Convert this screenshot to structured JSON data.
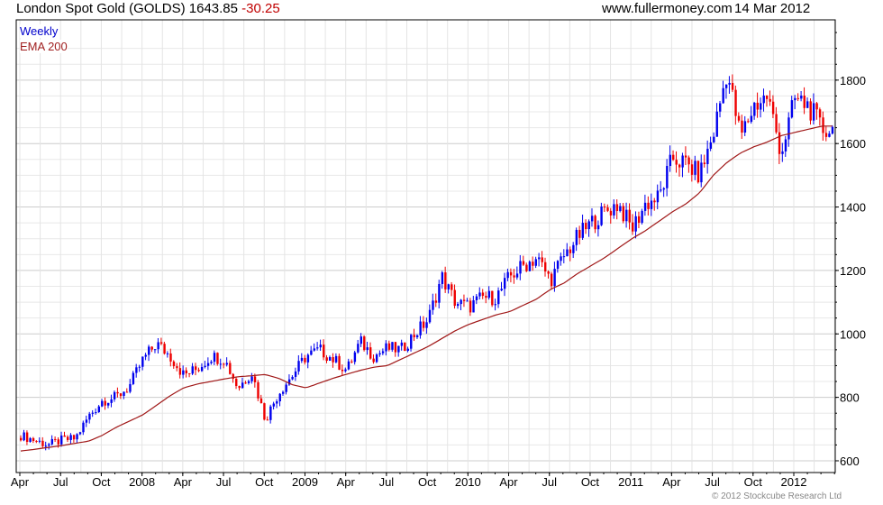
{
  "header": {
    "title": "London Spot Gold (GOLDS) 1643.85",
    "change": "-30.25",
    "site": "www.fullermoney.com",
    "date": "14 Mar 2012"
  },
  "legend": {
    "series": "Weekly",
    "ema": "EMA 200"
  },
  "footer": {
    "copyright": "© 2012 Stockcube Research Ltd"
  },
  "colors": {
    "up": "#0000ee",
    "down": "#ee0000",
    "ema": "#a01818",
    "grid": "#dddddd"
  },
  "chart_data": {
    "type": "candlestick",
    "title": "London Spot Gold (GOLDS)",
    "ylim": [
      563,
      1990
    ],
    "yticks": [
      600,
      800,
      1000,
      1200,
      1400,
      1600,
      1800
    ],
    "xticks": [
      "Apr",
      "Jul",
      "Oct",
      "2008",
      "Apr",
      "Jul",
      "Oct",
      "2009",
      "Apr",
      "Jul",
      "Oct",
      "2010",
      "Apr",
      "Jul",
      "Oct",
      "2011",
      "Apr",
      "Jul",
      "Oct",
      "2012"
    ],
    "months": [
      "Apr 2007",
      "May",
      "Jun",
      "Jul",
      "Aug",
      "Sep",
      "Oct",
      "Nov",
      "Dec",
      "Jan 2008",
      "Feb",
      "Mar",
      "Apr",
      "May",
      "Jun",
      "Jul",
      "Aug",
      "Sep",
      "Oct",
      "Nov",
      "Dec",
      "Jan 2009",
      "Feb",
      "Mar",
      "Apr",
      "May",
      "Jun",
      "Jul",
      "Aug",
      "Sep",
      "Oct",
      "Nov",
      "Dec",
      "Jan 2010",
      "Feb",
      "Mar",
      "Apr",
      "May",
      "Jun",
      "Jul",
      "Aug",
      "Sep",
      "Oct",
      "Nov",
      "Dec",
      "Jan 2011",
      "Feb",
      "Mar",
      "Apr",
      "May",
      "Jun",
      "Jul",
      "Aug",
      "Sep",
      "Oct",
      "Nov",
      "Dec",
      "Jan 2012",
      "Feb",
      "Mar"
    ],
    "monthly_close": [
      680,
      665,
      650,
      665,
      670,
      740,
      790,
      800,
      835,
      920,
      970,
      930,
      870,
      890,
      930,
      920,
      830,
      880,
      730,
      815,
      870,
      930,
      950,
      920,
      885,
      975,
      930,
      955,
      950,
      1000,
      1045,
      1180,
      1100,
      1085,
      1115,
      1115,
      1180,
      1215,
      1240,
      1170,
      1245,
      1305,
      1350,
      1385,
      1410,
      1330,
      1410,
      1430,
      1555,
      1535,
      1500,
      1630,
      1830,
      1620,
      1720,
      1750,
      1570,
      1740,
      1720,
      1644
    ],
    "ema200_monthly": [
      631,
      636,
      642,
      648,
      655,
      662,
      680,
      705,
      725,
      745,
      775,
      805,
      830,
      842,
      850,
      858,
      865,
      868,
      872,
      860,
      840,
      830,
      845,
      860,
      873,
      885,
      895,
      900,
      920,
      940,
      960,
      985,
      1010,
      1030,
      1045,
      1060,
      1070,
      1090,
      1110,
      1140,
      1160,
      1190,
      1215,
      1240,
      1270,
      1300,
      1325,
      1355,
      1385,
      1410,
      1445,
      1500,
      1540,
      1570,
      1590,
      1605,
      1625,
      1635,
      1645,
      1655
    ]
  }
}
